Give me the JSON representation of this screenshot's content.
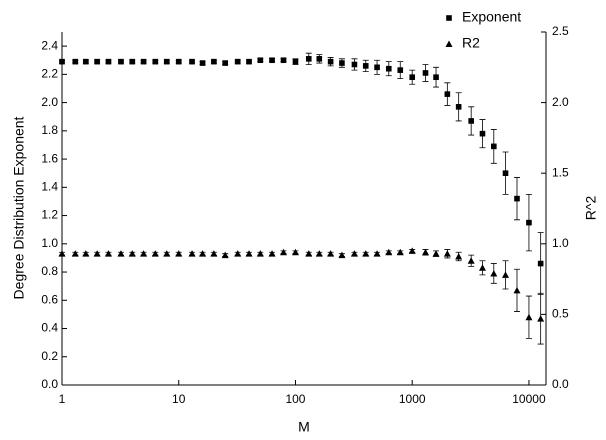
{
  "chart_data": {
    "type": "scatter",
    "x_label": "M",
    "y_label": "Degree Distribution Exponent",
    "y2_label": "R^2",
    "xscale": "log",
    "xlim": [
      1,
      14000
    ],
    "xticks": [
      1,
      10,
      100,
      1000,
      10000
    ],
    "ylim": [
      0,
      2.5
    ],
    "yticks": [
      {
        "value": 0,
        "label": "0.0"
      },
      0.2,
      0.4,
      0.6,
      0.8,
      {
        "value": 1,
        "label": "1.0"
      },
      1.2,
      1.4,
      1.6,
      1.8,
      {
        "value": 2,
        "label": "2.0"
      },
      2.2,
      2.4
    ],
    "y2lim": [
      0,
      2.5
    ],
    "y2ticks": [
      {
        "value": 0,
        "label": "0.0"
      },
      0.5,
      {
        "value": 1,
        "label": "1.0"
      },
      1.5,
      {
        "value": 2,
        "label": "2.0"
      },
      2.5
    ],
    "legend": "top-right",
    "x": [
      1,
      1.3,
      1.6,
      2,
      2.5,
      3.2,
      4,
      5,
      6.3,
      7.9,
      10,
      13,
      16,
      20,
      25,
      32,
      40,
      50,
      63,
      79,
      100,
      130,
      160,
      200,
      250,
      320,
      400,
      500,
      630,
      790,
      1000,
      1300,
      1600,
      2000,
      2500,
      3200,
      4000,
      5000,
      6300,
      7900,
      10000,
      12600
    ],
    "series": [
      {
        "name": "Exponent",
        "marker": "square",
        "color": "#000000",
        "values": [
          2.29,
          2.29,
          2.29,
          2.29,
          2.29,
          2.29,
          2.29,
          2.29,
          2.29,
          2.29,
          2.29,
          2.29,
          2.28,
          2.29,
          2.28,
          2.29,
          2.29,
          2.3,
          2.3,
          2.3,
          2.29,
          2.31,
          2.31,
          2.29,
          2.28,
          2.27,
          2.26,
          2.25,
          2.24,
          2.23,
          2.18,
          2.21,
          2.18,
          2.06,
          1.97,
          1.87,
          1.78,
          1.69,
          1.5,
          1.32,
          1.15,
          0.86
        ],
        "errors": [
          0.01,
          0.01,
          0.01,
          0.01,
          0.01,
          0.01,
          0.01,
          0.01,
          0.01,
          0.01,
          0.01,
          0.01,
          0.01,
          0.01,
          0.01,
          0.01,
          0.01,
          0.01,
          0.01,
          0.01,
          0.02,
          0.04,
          0.03,
          0.03,
          0.03,
          0.04,
          0.04,
          0.05,
          0.05,
          0.06,
          0.05,
          0.06,
          0.07,
          0.08,
          0.1,
          0.1,
          0.1,
          0.12,
          0.15,
          0.15,
          0.2,
          0.22
        ]
      },
      {
        "name": "R2",
        "marker": "triangle",
        "color": "#000000",
        "axis": "y2",
        "values": [
          0.93,
          0.93,
          0.93,
          0.93,
          0.93,
          0.93,
          0.93,
          0.93,
          0.93,
          0.93,
          0.93,
          0.93,
          0.93,
          0.93,
          0.92,
          0.93,
          0.93,
          0.93,
          0.93,
          0.94,
          0.94,
          0.93,
          0.93,
          0.93,
          0.92,
          0.93,
          0.93,
          0.93,
          0.94,
          0.94,
          0.95,
          0.94,
          0.93,
          0.93,
          0.91,
          0.88,
          0.83,
          0.79,
          0.78,
          0.67,
          0.48,
          0.47
        ],
        "errors": [
          0.01,
          0.01,
          0.01,
          0.01,
          0.01,
          0.01,
          0.01,
          0.01,
          0.01,
          0.01,
          0.01,
          0.01,
          0.01,
          0.01,
          0.01,
          0.01,
          0.01,
          0.01,
          0.01,
          0.01,
          0.01,
          0.01,
          0.01,
          0.01,
          0.01,
          0.01,
          0.01,
          0.01,
          0.01,
          0.01,
          0.01,
          0.02,
          0.02,
          0.03,
          0.03,
          0.04,
          0.05,
          0.07,
          0.1,
          0.15,
          0.15,
          0.18
        ]
      }
    ]
  }
}
